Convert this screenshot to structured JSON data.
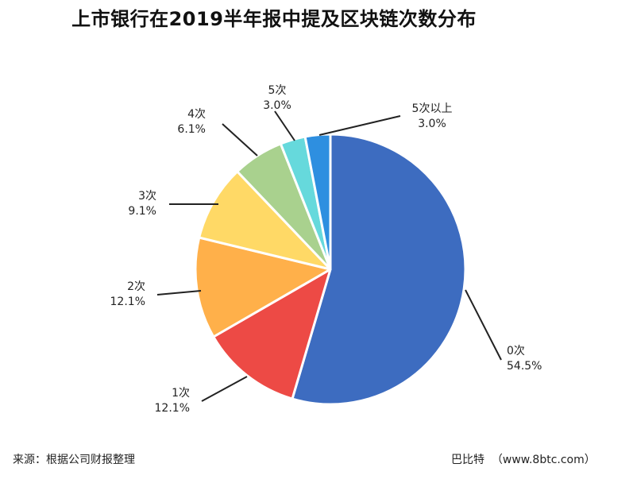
{
  "title": "上市银行在2019半年报中提及区块链次数分布",
  "source": "来源：根据公司财报整理",
  "credit": "巴比特  （www.8btc.com）",
  "chart_data": {
    "type": "pie",
    "title": "上市银行在2019半年报中提及区块链次数分布",
    "start": "12 o'clock",
    "direction": "clockwise",
    "slices": [
      {
        "category": "0次",
        "value": 54.5,
        "label": "54.5%",
        "color": "#3d6cc0"
      },
      {
        "category": "1次",
        "value": 12.1,
        "label": "12.1%",
        "color": "#ed4a45"
      },
      {
        "category": "2次",
        "value": 12.1,
        "label": "12.1%",
        "color": "#ffb04a"
      },
      {
        "category": "3次",
        "value": 9.1,
        "label": "9.1%",
        "color": "#ffd966"
      },
      {
        "category": "4次",
        "value": 6.1,
        "label": "6.1%",
        "color": "#a9d18e"
      },
      {
        "category": "5次",
        "value": 3.0,
        "label": "3.0%",
        "color": "#66d9dc"
      },
      {
        "category": "5次以上",
        "value": 3.0,
        "label": "3.0%",
        "color": "#2e8fe0"
      }
    ]
  }
}
